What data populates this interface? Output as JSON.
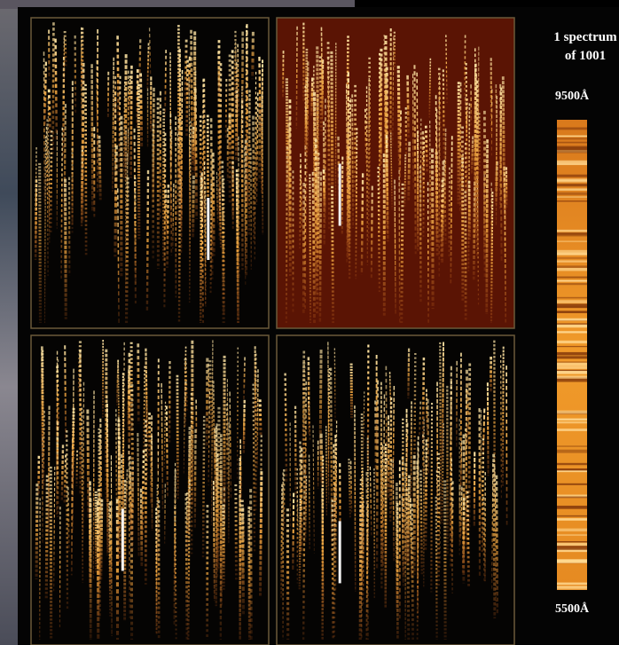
{
  "legend": {
    "caption_line1": "1 spectrum",
    "caption_line2": "of 1001",
    "top_wavelength": "9500Å",
    "bottom_wavelength": "5500Å"
  }
}
